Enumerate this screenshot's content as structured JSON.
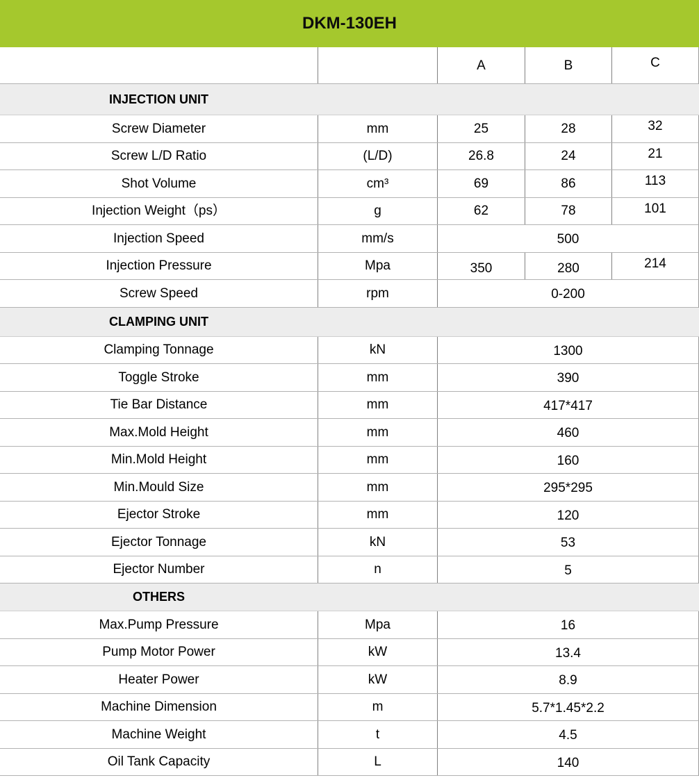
{
  "title": "DKM-130EH",
  "colors": {
    "banner_green": "#a5c82d",
    "section_band_gray": "#ededed",
    "grid_line_horizontal": "#b2b2b2",
    "grid_line_vertical": "#808080",
    "text": "#000000"
  },
  "columns": {
    "a": "A",
    "b": "B",
    "c": "C"
  },
  "sections": [
    {
      "name": "INJECTION UNIT",
      "rows": [
        {
          "label": "Screw Diameter",
          "unit": "mm",
          "a": "25",
          "b": "28",
          "c": "32"
        },
        {
          "label": "Screw L/D Ratio",
          "unit": "(L/D)",
          "a": "26.8",
          "b": "24",
          "c": "21"
        },
        {
          "label": "Shot Volume",
          "unit": "cm³",
          "a": "69",
          "b": "86",
          "c": "113"
        },
        {
          "label": "Injection Weight（ps）",
          "unit": "g",
          "a": "62",
          "b": "78",
          "c": "101"
        },
        {
          "label": "Injection Speed",
          "unit": "mm/s",
          "value": "500"
        },
        {
          "label": "Injection Pressure",
          "unit": "Mpa",
          "a": "350",
          "b": "280",
          "c": "214"
        },
        {
          "label": "Screw Speed",
          "unit": "rpm",
          "value": "0-200"
        }
      ]
    },
    {
      "name": "CLAMPING UNIT",
      "rows": [
        {
          "label": "Clamping Tonnage",
          "unit": "kN",
          "value": "1300"
        },
        {
          "label": "Toggle Stroke",
          "unit": "mm",
          "value": "390"
        },
        {
          "label": "Tie Bar Distance",
          "unit": "mm",
          "value": "417*417"
        },
        {
          "label": "Max.Mold Height",
          "unit": "mm",
          "value": "460"
        },
        {
          "label": "Min.Mold Height",
          "unit": "mm",
          "value": "160"
        },
        {
          "label": "Min.Mould Size",
          "unit": "mm",
          "value": "295*295"
        },
        {
          "label": "Ejector Stroke",
          "unit": "mm",
          "value": "120"
        },
        {
          "label": "Ejector Tonnage",
          "unit": "kN",
          "value": "53"
        },
        {
          "label": "Ejector Number",
          "unit": "n",
          "value": "5"
        }
      ]
    },
    {
      "name": "OTHERS",
      "rows": [
        {
          "label": "Max.Pump Pressure",
          "unit": "Mpa",
          "value": "16"
        },
        {
          "label": "Pump Motor Power",
          "unit": "kW",
          "value": "13.4"
        },
        {
          "label": "Heater Power",
          "unit": "kW",
          "value": "8.9"
        },
        {
          "label": "Machine Dimension",
          "unit": "m",
          "value": "5.7*1.45*2.2"
        },
        {
          "label": "Machine Weight",
          "unit": "t",
          "value": "4.5"
        },
        {
          "label": "Oil Tank Capacity",
          "unit": "L",
          "value": "140"
        }
      ]
    }
  ]
}
